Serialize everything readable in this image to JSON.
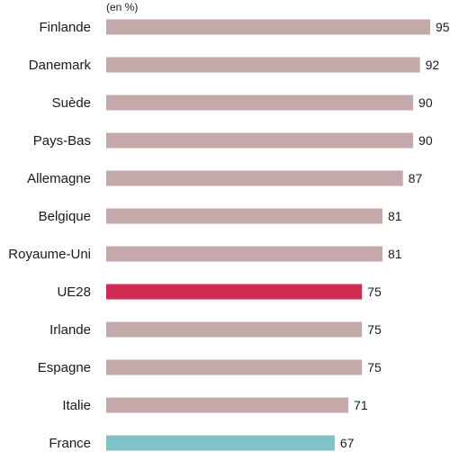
{
  "chart_data": {
    "type": "bar",
    "orientation": "horizontal",
    "unit_note": "(en %)",
    "categories": [
      "Finlande",
      "Danemark",
      "Suède",
      "Pays-Bas",
      "Allemagne",
      "Belgique",
      "Royaume-Uni",
      "UE28",
      "Irlande",
      "Espagne",
      "Italie",
      "France"
    ],
    "values": [
      95,
      92,
      90,
      90,
      87,
      81,
      81,
      75,
      75,
      75,
      71,
      67
    ],
    "xlim": [
      0,
      100
    ],
    "grid": false,
    "legend": "none",
    "colors": {
      "default": "#c3a9a9",
      "UE28": "#d02b53",
      "France": "#7fc2c8"
    }
  }
}
